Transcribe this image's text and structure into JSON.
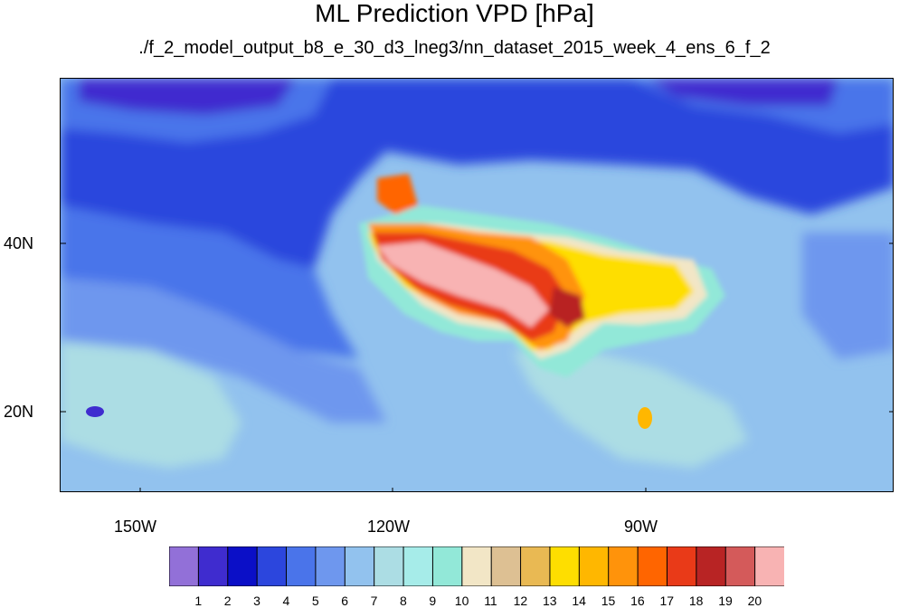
{
  "title": "ML Prediction VPD [hPa]",
  "subtitle": "./f_2_model_output_b8_e_30_d3_lneg3/nn_dataset_2015_week_4_ens_6_f_2",
  "axes": {
    "lat_labels": [
      "40N",
      "20N"
    ],
    "lon_labels": [
      "150W",
      "120W",
      "90W"
    ]
  },
  "colorbar": {
    "labels": [
      "1",
      "2",
      "3",
      "4",
      "5",
      "6",
      "7",
      "8",
      "9",
      "10",
      "11",
      "12",
      "13",
      "14",
      "15",
      "16",
      "17",
      "18",
      "19",
      "20"
    ],
    "colors": [
      "#9270d8",
      "#3f2ccf",
      "#0b0fc7",
      "#2c46dd",
      "#4a74ea",
      "#6e97ee",
      "#92c2ee",
      "#acdde4",
      "#a6ece9",
      "#92e8d8",
      "#f2e6c6",
      "#ddc093",
      "#e9b953",
      "#fede00",
      "#ffb700",
      "#ff930b",
      "#ff6500",
      "#e93a18",
      "#b82424",
      "#d45a5a",
      "#f8b3b3"
    ]
  }
}
